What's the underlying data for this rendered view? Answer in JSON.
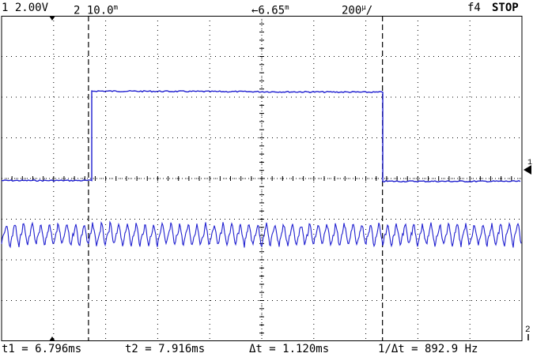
{
  "header": {
    "ch1_label": "1 2.00V",
    "ch2_label": "2 10.0",
    "ch2_unit_sup": "m",
    "time_offset": "←6.65",
    "time_offset_unit": "m",
    "timebase": "200",
    "timebase_unit": "µ",
    "trigger_label": "f4",
    "run_state": "STOP"
  },
  "footer": {
    "t1": "t1 = 6.796ms",
    "t2": "t2 = 7.916ms",
    "dt": "Δt = 1.120ms",
    "inv_dt": "1/Δt = 892.9 Hz"
  },
  "markers": {
    "ch1_ref": "1",
    "ch2_ref": "2"
  },
  "colors": {
    "trace": "#1f1fd0",
    "grid": "#000000",
    "background": "#ffffff"
  },
  "chart_data": {
    "type": "line",
    "grid": true,
    "divisions": {
      "x": 10,
      "y": 8
    },
    "cursor_t1_ms": 6.796,
    "cursor_t2_ms": 7.916,
    "series": [
      {
        "shape": "square",
        "low_div": -0.05,
        "high_div": 2.15,
        "rise_div": 1.72,
        "fall_div": 7.32
      },
      {
        "shape": "oscillation",
        "center_div": -1.38,
        "amplitude_div": 0.3,
        "cycles": 60
      }
    ]
  }
}
